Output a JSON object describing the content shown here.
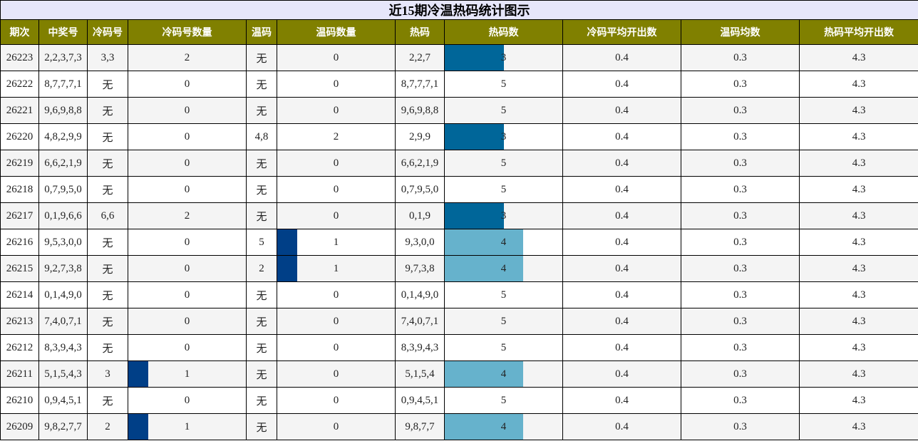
{
  "title": "近15期冷温热码统计图示",
  "headers": [
    "期次",
    "中奖号",
    "冷码号",
    "冷码号数量",
    "温码",
    "温码数量",
    "热码",
    "热码数",
    "冷码平均开出数",
    "温码均数",
    "热码平均开出数"
  ],
  "none_label": "无",
  "colors": {
    "title_bg": "#e6e6fa",
    "header_bg": "#808000",
    "bar_dark_blue": "#003f87",
    "bar_mid_blue": "#006699",
    "bar_light_blue": "#66b2cc"
  },
  "bar_scale_max": 6,
  "rows": [
    {
      "period": "26223",
      "winning": "2,2,3,7,3",
      "cold": "3,3",
      "cold_count": "2",
      "warm": "无",
      "warm_count": "0",
      "hot": "2,2,7",
      "hot_count": "3",
      "cold_avg": "0.4",
      "warm_avg": "0.3",
      "hot_avg": "4.3"
    },
    {
      "period": "26222",
      "winning": "8,7,7,7,1",
      "cold": "无",
      "cold_count": "0",
      "warm": "无",
      "warm_count": "0",
      "hot": "8,7,7,7,1",
      "hot_count": "5",
      "cold_avg": "0.4",
      "warm_avg": "0.3",
      "hot_avg": "4.3"
    },
    {
      "period": "26221",
      "winning": "9,6,9,8,8",
      "cold": "无",
      "cold_count": "0",
      "warm": "无",
      "warm_count": "0",
      "hot": "9,6,9,8,8",
      "hot_count": "5",
      "cold_avg": "0.4",
      "warm_avg": "0.3",
      "hot_avg": "4.3"
    },
    {
      "period": "26220",
      "winning": "4,8,2,9,9",
      "cold": "无",
      "cold_count": "0",
      "warm": "4,8",
      "warm_count": "2",
      "hot": "2,9,9",
      "hot_count": "3",
      "cold_avg": "0.4",
      "warm_avg": "0.3",
      "hot_avg": "4.3"
    },
    {
      "period": "26219",
      "winning": "6,6,2,1,9",
      "cold": "无",
      "cold_count": "0",
      "warm": "无",
      "warm_count": "0",
      "hot": "6,6,2,1,9",
      "hot_count": "5",
      "cold_avg": "0.4",
      "warm_avg": "0.3",
      "hot_avg": "4.3"
    },
    {
      "period": "26218",
      "winning": "0,7,9,5,0",
      "cold": "无",
      "cold_count": "0",
      "warm": "无",
      "warm_count": "0",
      "hot": "0,7,9,5,0",
      "hot_count": "5",
      "cold_avg": "0.4",
      "warm_avg": "0.3",
      "hot_avg": "4.3"
    },
    {
      "period": "26217",
      "winning": "0,1,9,6,6",
      "cold": "6,6",
      "cold_count": "2",
      "warm": "无",
      "warm_count": "0",
      "hot": "0,1,9",
      "hot_count": "3",
      "cold_avg": "0.4",
      "warm_avg": "0.3",
      "hot_avg": "4.3"
    },
    {
      "period": "26216",
      "winning": "9,5,3,0,0",
      "cold": "无",
      "cold_count": "0",
      "warm": "5",
      "warm_count": "1",
      "hot": "9,3,0,0",
      "hot_count": "4",
      "cold_avg": "0.4",
      "warm_avg": "0.3",
      "hot_avg": "4.3"
    },
    {
      "period": "26215",
      "winning": "9,2,7,3,8",
      "cold": "无",
      "cold_count": "0",
      "warm": "2",
      "warm_count": "1",
      "hot": "9,7,3,8",
      "hot_count": "4",
      "cold_avg": "0.4",
      "warm_avg": "0.3",
      "hot_avg": "4.3"
    },
    {
      "period": "26214",
      "winning": "0,1,4,9,0",
      "cold": "无",
      "cold_count": "0",
      "warm": "无",
      "warm_count": "0",
      "hot": "0,1,4,9,0",
      "hot_count": "5",
      "cold_avg": "0.4",
      "warm_avg": "0.3",
      "hot_avg": "4.3"
    },
    {
      "period": "26213",
      "winning": "7,4,0,7,1",
      "cold": "无",
      "cold_count": "0",
      "warm": "无",
      "warm_count": "0",
      "hot": "7,4,0,7,1",
      "hot_count": "5",
      "cold_avg": "0.4",
      "warm_avg": "0.3",
      "hot_avg": "4.3"
    },
    {
      "period": "26212",
      "winning": "8,3,9,4,3",
      "cold": "无",
      "cold_count": "0",
      "warm": "无",
      "warm_count": "0",
      "hot": "8,3,9,4,3",
      "hot_count": "5",
      "cold_avg": "0.4",
      "warm_avg": "0.3",
      "hot_avg": "4.3"
    },
    {
      "period": "26211",
      "winning": "5,1,5,4,3",
      "cold": "3",
      "cold_count": "1",
      "warm": "无",
      "warm_count": "0",
      "hot": "5,1,5,4",
      "hot_count": "4",
      "cold_avg": "0.4",
      "warm_avg": "0.3",
      "hot_avg": "4.3"
    },
    {
      "period": "26210",
      "winning": "0,9,4,5,1",
      "cold": "无",
      "cold_count": "0",
      "warm": "无",
      "warm_count": "0",
      "hot": "0,9,4,5,1",
      "hot_count": "5",
      "cold_avg": "0.4",
      "warm_avg": "0.3",
      "hot_avg": "4.3"
    },
    {
      "period": "26209",
      "winning": "9,8,2,7,7",
      "cold": "2",
      "cold_count": "1",
      "warm": "无",
      "warm_count": "0",
      "hot": "9,8,7,7",
      "hot_count": "4",
      "cold_avg": "0.4",
      "warm_avg": "0.3",
      "hot_avg": "4.3"
    }
  ]
}
